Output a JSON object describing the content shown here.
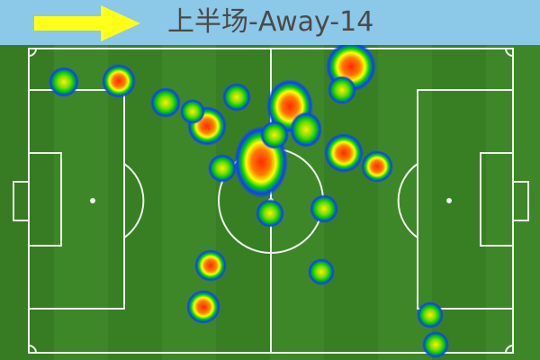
{
  "header": {
    "title": "上半场-Away-14",
    "background": "#8cc8e8",
    "arrow_color": "#ffff1a",
    "arrow_direction": "right"
  },
  "pitch": {
    "grass_color_light": "#3f8a2a",
    "grass_color_dark": "#2f7420",
    "line_color": "#ffffff",
    "view": "full-pitch-horizontal"
  },
  "heatmap": {
    "palette": [
      "#1030ff",
      "#00d000",
      "#ffff00",
      "#ff2a00"
    ]
  }
}
